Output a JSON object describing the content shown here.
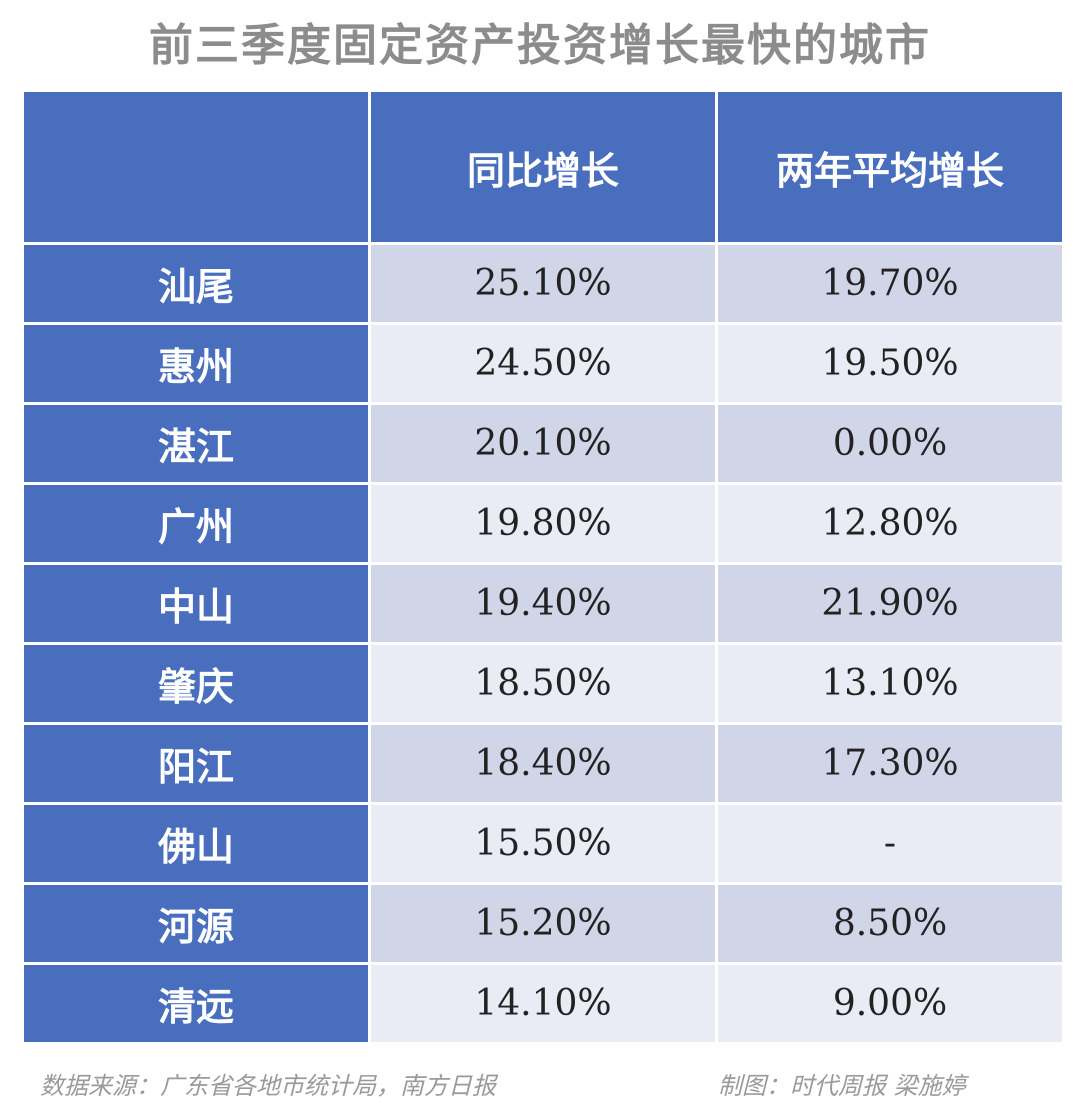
{
  "title": "前三季度固定资产投资增长最快的城市",
  "header": {
    "corner": "",
    "col1": "同比增长",
    "col2": "两年平均增长"
  },
  "rows": [
    {
      "city": "汕尾",
      "yoy": "25.10%",
      "two_year": "19.70%"
    },
    {
      "city": "惠州",
      "yoy": "24.50%",
      "two_year": "19.50%"
    },
    {
      "city": "湛江",
      "yoy": "20.10%",
      "two_year": "0.00%"
    },
    {
      "city": "广州",
      "yoy": "19.80%",
      "two_year": "12.80%"
    },
    {
      "city": "中山",
      "yoy": "19.40%",
      "two_year": "21.90%"
    },
    {
      "city": "肇庆",
      "yoy": "18.50%",
      "two_year": "13.10%"
    },
    {
      "city": "阳江",
      "yoy": "18.40%",
      "two_year": "17.30%"
    },
    {
      "city": "佛山",
      "yoy": "15.50%",
      "two_year": "-"
    },
    {
      "city": "河源",
      "yoy": "15.20%",
      "two_year": "8.50%"
    },
    {
      "city": "清远",
      "yoy": "14.10%",
      "two_year": "9.00%"
    }
  ],
  "footer": {
    "source": "数据来源：广东省各地市统计局，南方日报",
    "credit": "制图：时代周报 梁施婷"
  },
  "colors": {
    "header_bg": "#4a6ebe",
    "row_odd": "#d0d6e8",
    "row_even": "#e9ecf5",
    "title": "#8c8c8c"
  },
  "chart_data": {
    "type": "table",
    "title": "前三季度固定资产投资增长最快的城市",
    "columns": [
      "",
      "同比增长",
      "两年平均增长"
    ],
    "categories": [
      "汕尾",
      "惠州",
      "湛江",
      "广州",
      "中山",
      "肇庆",
      "阳江",
      "佛山",
      "河源",
      "清远"
    ],
    "series": [
      {
        "name": "同比增长",
        "values": [
          25.1,
          24.5,
          20.1,
          19.8,
          19.4,
          18.5,
          18.4,
          15.5,
          15.2,
          14.1
        ]
      },
      {
        "name": "两年平均增长",
        "values": [
          19.7,
          19.5,
          0.0,
          12.8,
          21.9,
          13.1,
          17.3,
          null,
          8.5,
          9.0
        ]
      }
    ]
  }
}
